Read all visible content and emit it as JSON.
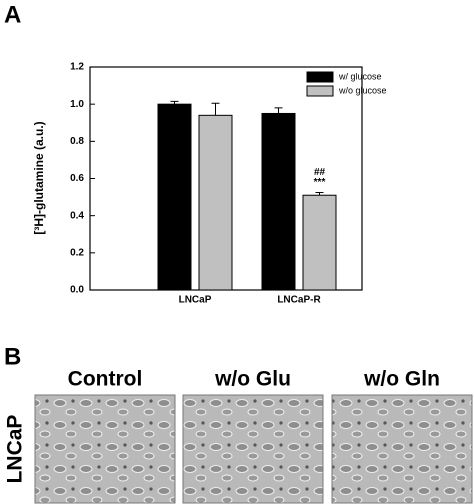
{
  "chart_data": {
    "type": "bar",
    "ylabel": "[³H]-glutamine (a.u.)",
    "categories": [
      "LNCaP",
      "LNCaP-R"
    ],
    "series": [
      {
        "name": "w/ glucose",
        "color": "#000000",
        "values": [
          1.0,
          0.95
        ],
        "errors": [
          0.015,
          0.03
        ]
      },
      {
        "name": "w/o glucose",
        "color": "#c0c0c0",
        "values": [
          0.94,
          0.51
        ],
        "errors": [
          0.065,
          0.015
        ]
      }
    ],
    "annotations": [
      "##",
      "***"
    ],
    "ylim": [
      0,
      1.2
    ],
    "yticks": [
      {
        "value": 0,
        "label": "0.0"
      },
      0.2,
      0.4,
      0.6,
      0.8,
      {
        "value": 1,
        "label": "1.0"
      },
      1.2
    ],
    "legend": "upper right"
  },
  "panel_labels": [
    "A",
    "B"
  ],
  "images": {
    "row_label": "LNCaP",
    "columns": [
      "Control",
      "w/o Glu",
      "w/o Gln"
    ]
  }
}
